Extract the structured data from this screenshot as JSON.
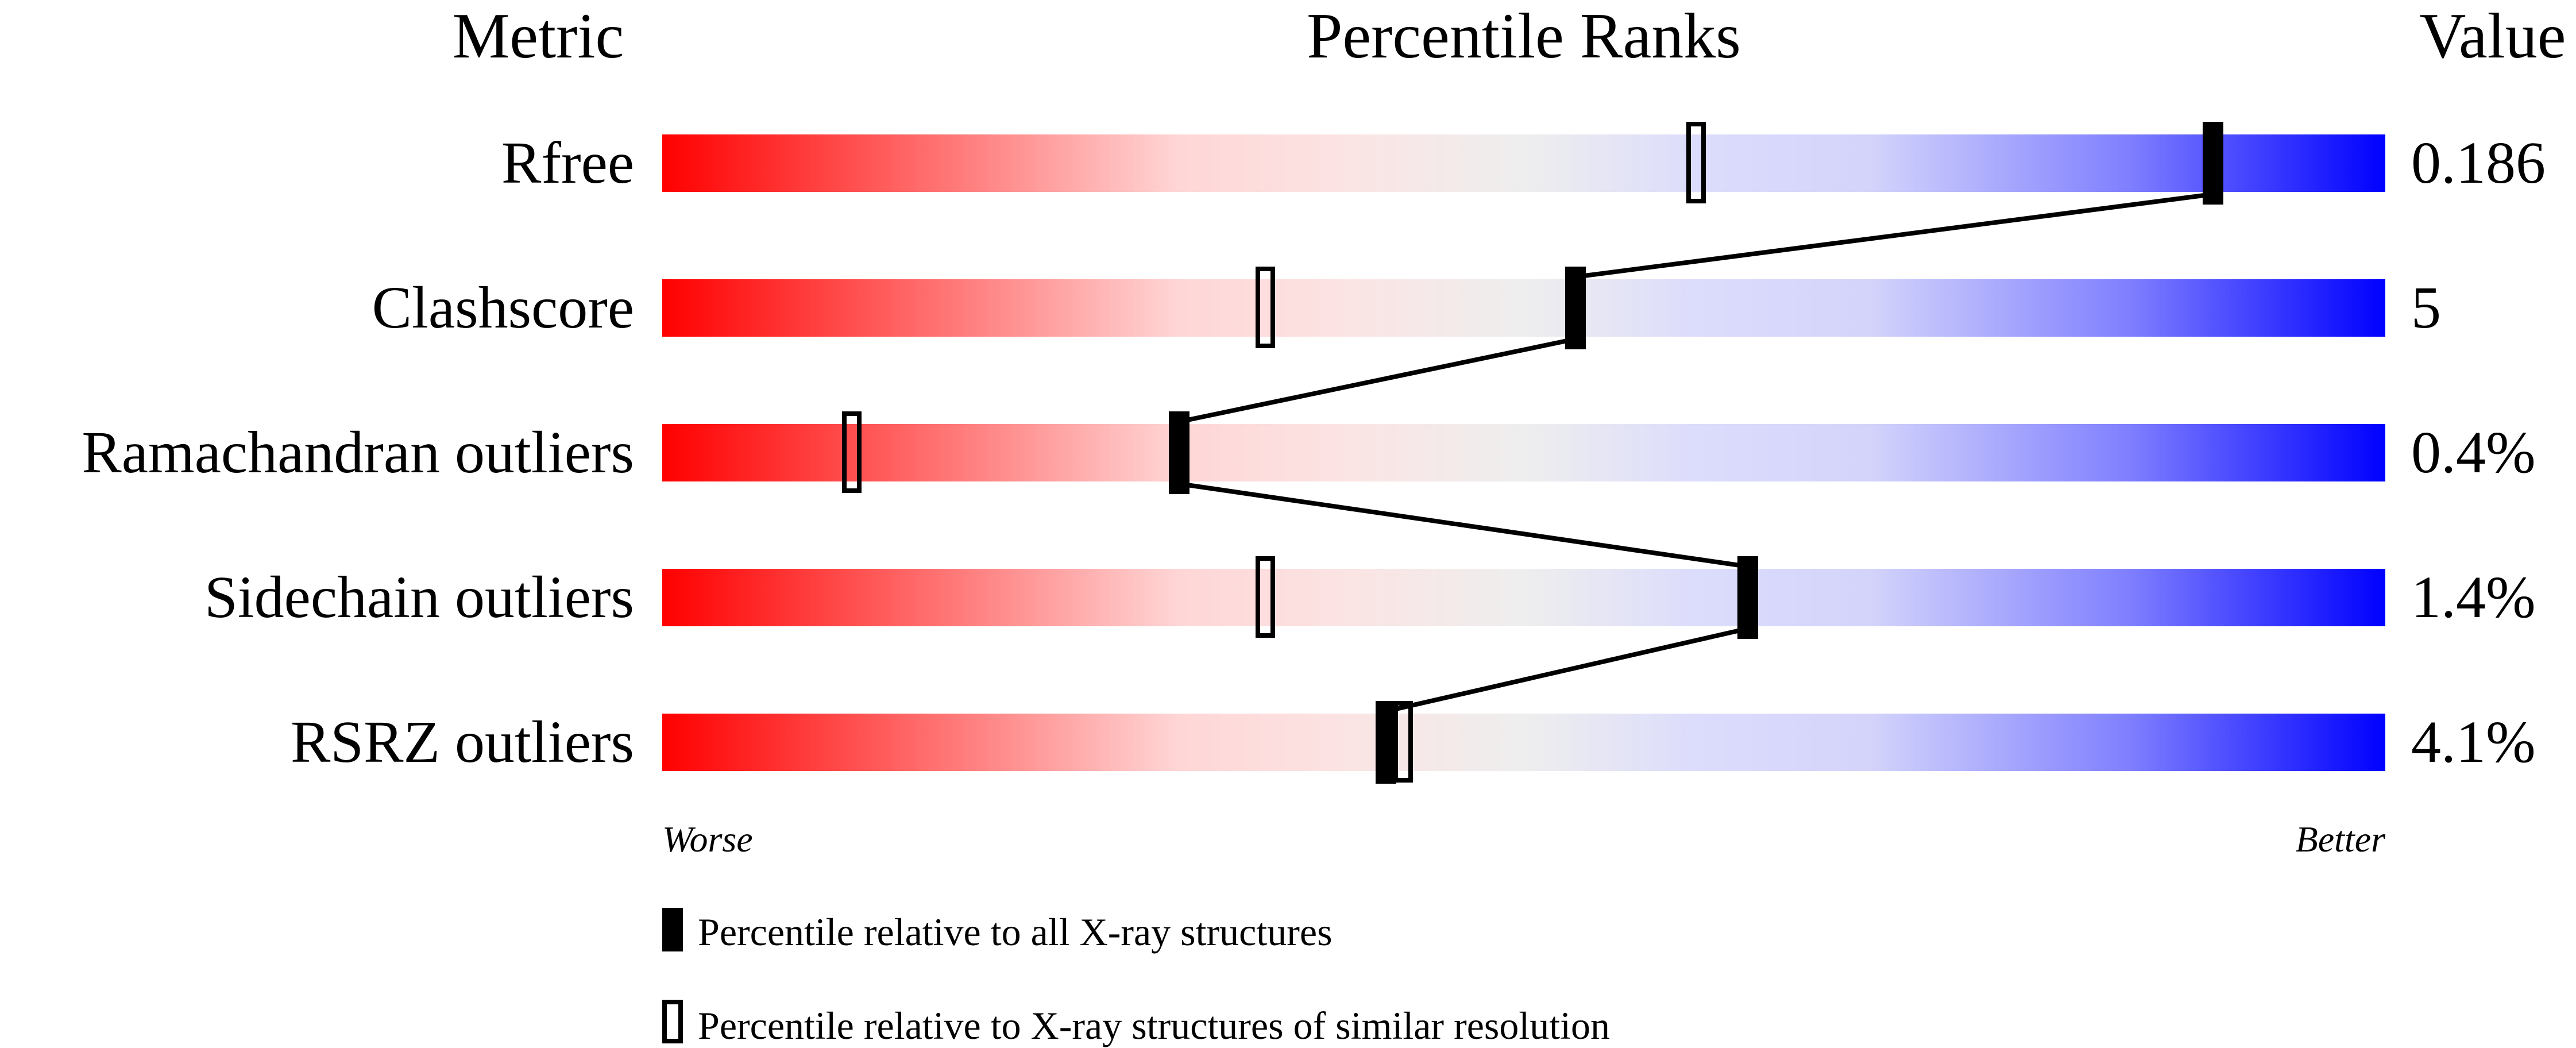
{
  "chart_data": {
    "type": "percentile-bars",
    "headers": {
      "metric": "Metric",
      "ranks": "Percentile Ranks",
      "value": "Value"
    },
    "xlim": [
      0,
      100
    ],
    "axis_labels": {
      "left": "Worse",
      "right": "Better"
    },
    "gradient_colors": {
      "worse": "#ff0000",
      "middle": "#eeeeee",
      "better": "#0000ff"
    },
    "metrics": [
      {
        "name": "Rfree",
        "value": "0.186",
        "percentile_all": 90,
        "percentile_similar": 60
      },
      {
        "name": "Clashscore",
        "value": "5",
        "percentile_all": 53,
        "percentile_similar": 35
      },
      {
        "name": "Ramachandran outliers",
        "value": "0.4%",
        "percentile_all": 30,
        "percentile_similar": 11
      },
      {
        "name": "Sidechain outliers",
        "value": "1.4%",
        "percentile_all": 63,
        "percentile_similar": 35
      },
      {
        "name": "RSRZ outliers",
        "value": "4.1%",
        "percentile_all": 42,
        "percentile_similar": 43
      }
    ],
    "legend": [
      {
        "marker": "filled",
        "label": "Percentile relative to all X-ray structures"
      },
      {
        "marker": "open",
        "label": "Percentile relative to X-ray structures of similar resolution"
      }
    ]
  }
}
